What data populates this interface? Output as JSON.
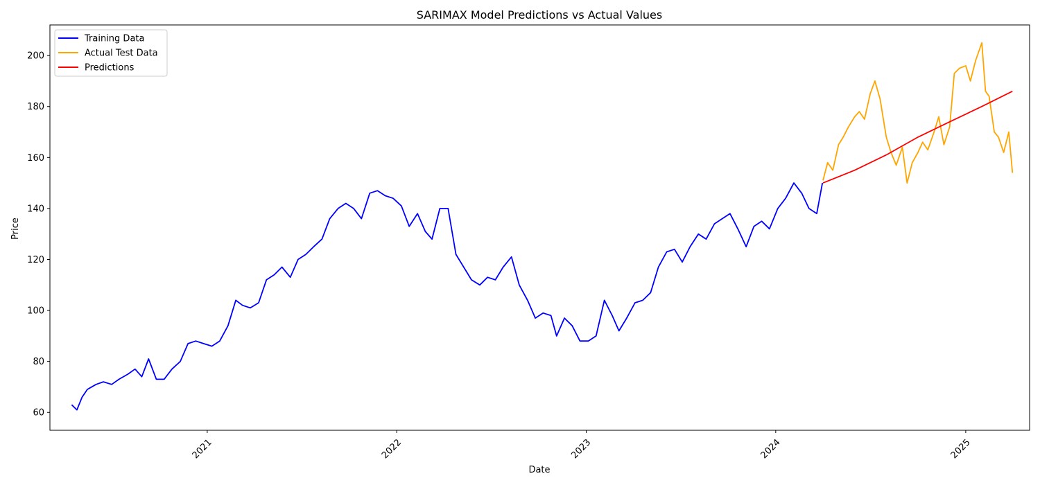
{
  "chart_data": {
    "type": "line",
    "title": "SARIMAX Model Predictions vs Actual Values",
    "xlabel": "Date",
    "ylabel": "Price",
    "xlim": [
      "2020-03-04",
      "2025-05-04"
    ],
    "ylim": [
      53,
      212
    ],
    "x_ticks": [
      "2021-01-01",
      "2022-01-01",
      "2023-01-01",
      "2024-01-01",
      "2025-01-01"
    ],
    "x_tick_labels": [
      "2021",
      "2022",
      "2023",
      "2024",
      "2025"
    ],
    "y_ticks": [
      60,
      80,
      100,
      120,
      140,
      160,
      180,
      200
    ],
    "grid": false,
    "legend_position": "upper-left",
    "series": [
      {
        "name": "Training Data",
        "color": "#0000ff",
        "x": [
          "2020-04-15",
          "2020-04-25",
          "2020-05-05",
          "2020-05-15",
          "2020-06-01",
          "2020-06-15",
          "2020-07-01",
          "2020-07-15",
          "2020-08-01",
          "2020-08-15",
          "2020-08-28",
          "2020-09-10",
          "2020-09-25",
          "2020-10-10",
          "2020-10-25",
          "2020-11-10",
          "2020-11-25",
          "2020-12-10",
          "2020-12-25",
          "2021-01-10",
          "2021-01-25",
          "2021-02-10",
          "2021-02-25",
          "2021-03-10",
          "2021-03-25",
          "2021-04-10",
          "2021-04-25",
          "2021-05-10",
          "2021-05-25",
          "2021-06-10",
          "2021-06-25",
          "2021-07-10",
          "2021-07-25",
          "2021-08-10",
          "2021-08-25",
          "2021-09-10",
          "2021-09-25",
          "2021-10-10",
          "2021-10-25",
          "2021-11-10",
          "2021-11-25",
          "2021-12-10",
          "2021-12-25",
          "2022-01-10",
          "2022-01-25",
          "2022-02-10",
          "2022-02-25",
          "2022-03-10",
          "2022-03-25",
          "2022-04-10",
          "2022-04-25",
          "2022-05-10",
          "2022-05-25",
          "2022-06-10",
          "2022-06-25",
          "2022-07-10",
          "2022-07-25",
          "2022-08-10",
          "2022-08-25",
          "2022-09-10",
          "2022-09-25",
          "2022-10-10",
          "2022-10-25",
          "2022-11-05",
          "2022-11-20",
          "2022-12-05",
          "2022-12-20",
          "2023-01-05",
          "2023-01-20",
          "2023-02-05",
          "2023-02-20",
          "2023-03-05",
          "2023-03-20",
          "2023-04-05",
          "2023-04-20",
          "2023-05-05",
          "2023-05-20",
          "2023-06-05",
          "2023-06-20",
          "2023-07-05",
          "2023-07-20",
          "2023-08-05",
          "2023-08-20",
          "2023-09-05",
          "2023-09-20",
          "2023-10-05",
          "2023-10-20",
          "2023-11-05",
          "2023-11-20",
          "2023-12-05",
          "2023-12-20",
          "2024-01-05",
          "2024-01-20",
          "2024-02-05",
          "2024-02-20",
          "2024-03-05",
          "2024-03-20",
          "2024-03-31"
        ],
        "y": [
          63,
          61,
          66,
          69,
          71,
          72,
          71,
          73,
          75,
          77,
          74,
          81,
          73,
          73,
          77,
          80,
          87,
          88,
          87,
          86,
          88,
          94,
          104,
          102,
          101,
          103,
          112,
          114,
          117,
          113,
          120,
          122,
          125,
          128,
          136,
          140,
          142,
          140,
          136,
          146,
          147,
          145,
          144,
          141,
          133,
          138,
          131,
          128,
          140,
          140,
          122,
          117,
          112,
          110,
          113,
          112,
          117,
          121,
          110,
          104,
          97,
          99,
          98,
          90,
          97,
          94,
          88,
          88,
          90,
          104,
          98,
          92,
          97,
          103,
          104,
          107,
          117,
          123,
          124,
          119,
          125,
          130,
          128,
          134,
          136,
          138,
          132,
          125,
          133,
          135,
          132,
          140,
          144,
          150,
          146,
          140,
          138,
          150
        ]
      },
      {
        "name": "Actual Test Data",
        "color": "#ffa500",
        "x": [
          "2024-04-01",
          "2024-04-10",
          "2024-04-20",
          "2024-05-01",
          "2024-05-10",
          "2024-05-20",
          "2024-06-01",
          "2024-06-10",
          "2024-06-20",
          "2024-07-01",
          "2024-07-10",
          "2024-07-20",
          "2024-08-01",
          "2024-08-10",
          "2024-08-20",
          "2024-09-01",
          "2024-09-10",
          "2024-09-20",
          "2024-10-01",
          "2024-10-10",
          "2024-10-20",
          "2024-11-01",
          "2024-11-10",
          "2024-11-20",
          "2024-12-01",
          "2024-12-10",
          "2024-12-20",
          "2025-01-01",
          "2025-01-10",
          "2025-01-20",
          "2025-02-01",
          "2025-02-08",
          "2025-02-15",
          "2025-02-25",
          "2025-03-05",
          "2025-03-15",
          "2025-03-25",
          "2025-04-01"
        ],
        "y": [
          151,
          158,
          155,
          165,
          168,
          172,
          176,
          178,
          175,
          185,
          190,
          183,
          168,
          162,
          157,
          164,
          150,
          158,
          162,
          166,
          163,
          170,
          176,
          165,
          172,
          193,
          195,
          196,
          190,
          198,
          205,
          186,
          184,
          170,
          168,
          162,
          170,
          154
        ]
      },
      {
        "name": "Predictions",
        "color": "#ff0000",
        "x": [
          "2024-04-01",
          "2024-06-01",
          "2024-08-01",
          "2024-10-01",
          "2024-12-01",
          "2025-02-01",
          "2025-04-01"
        ],
        "y": [
          150,
          155,
          161,
          168,
          174,
          180,
          186
        ]
      }
    ]
  }
}
